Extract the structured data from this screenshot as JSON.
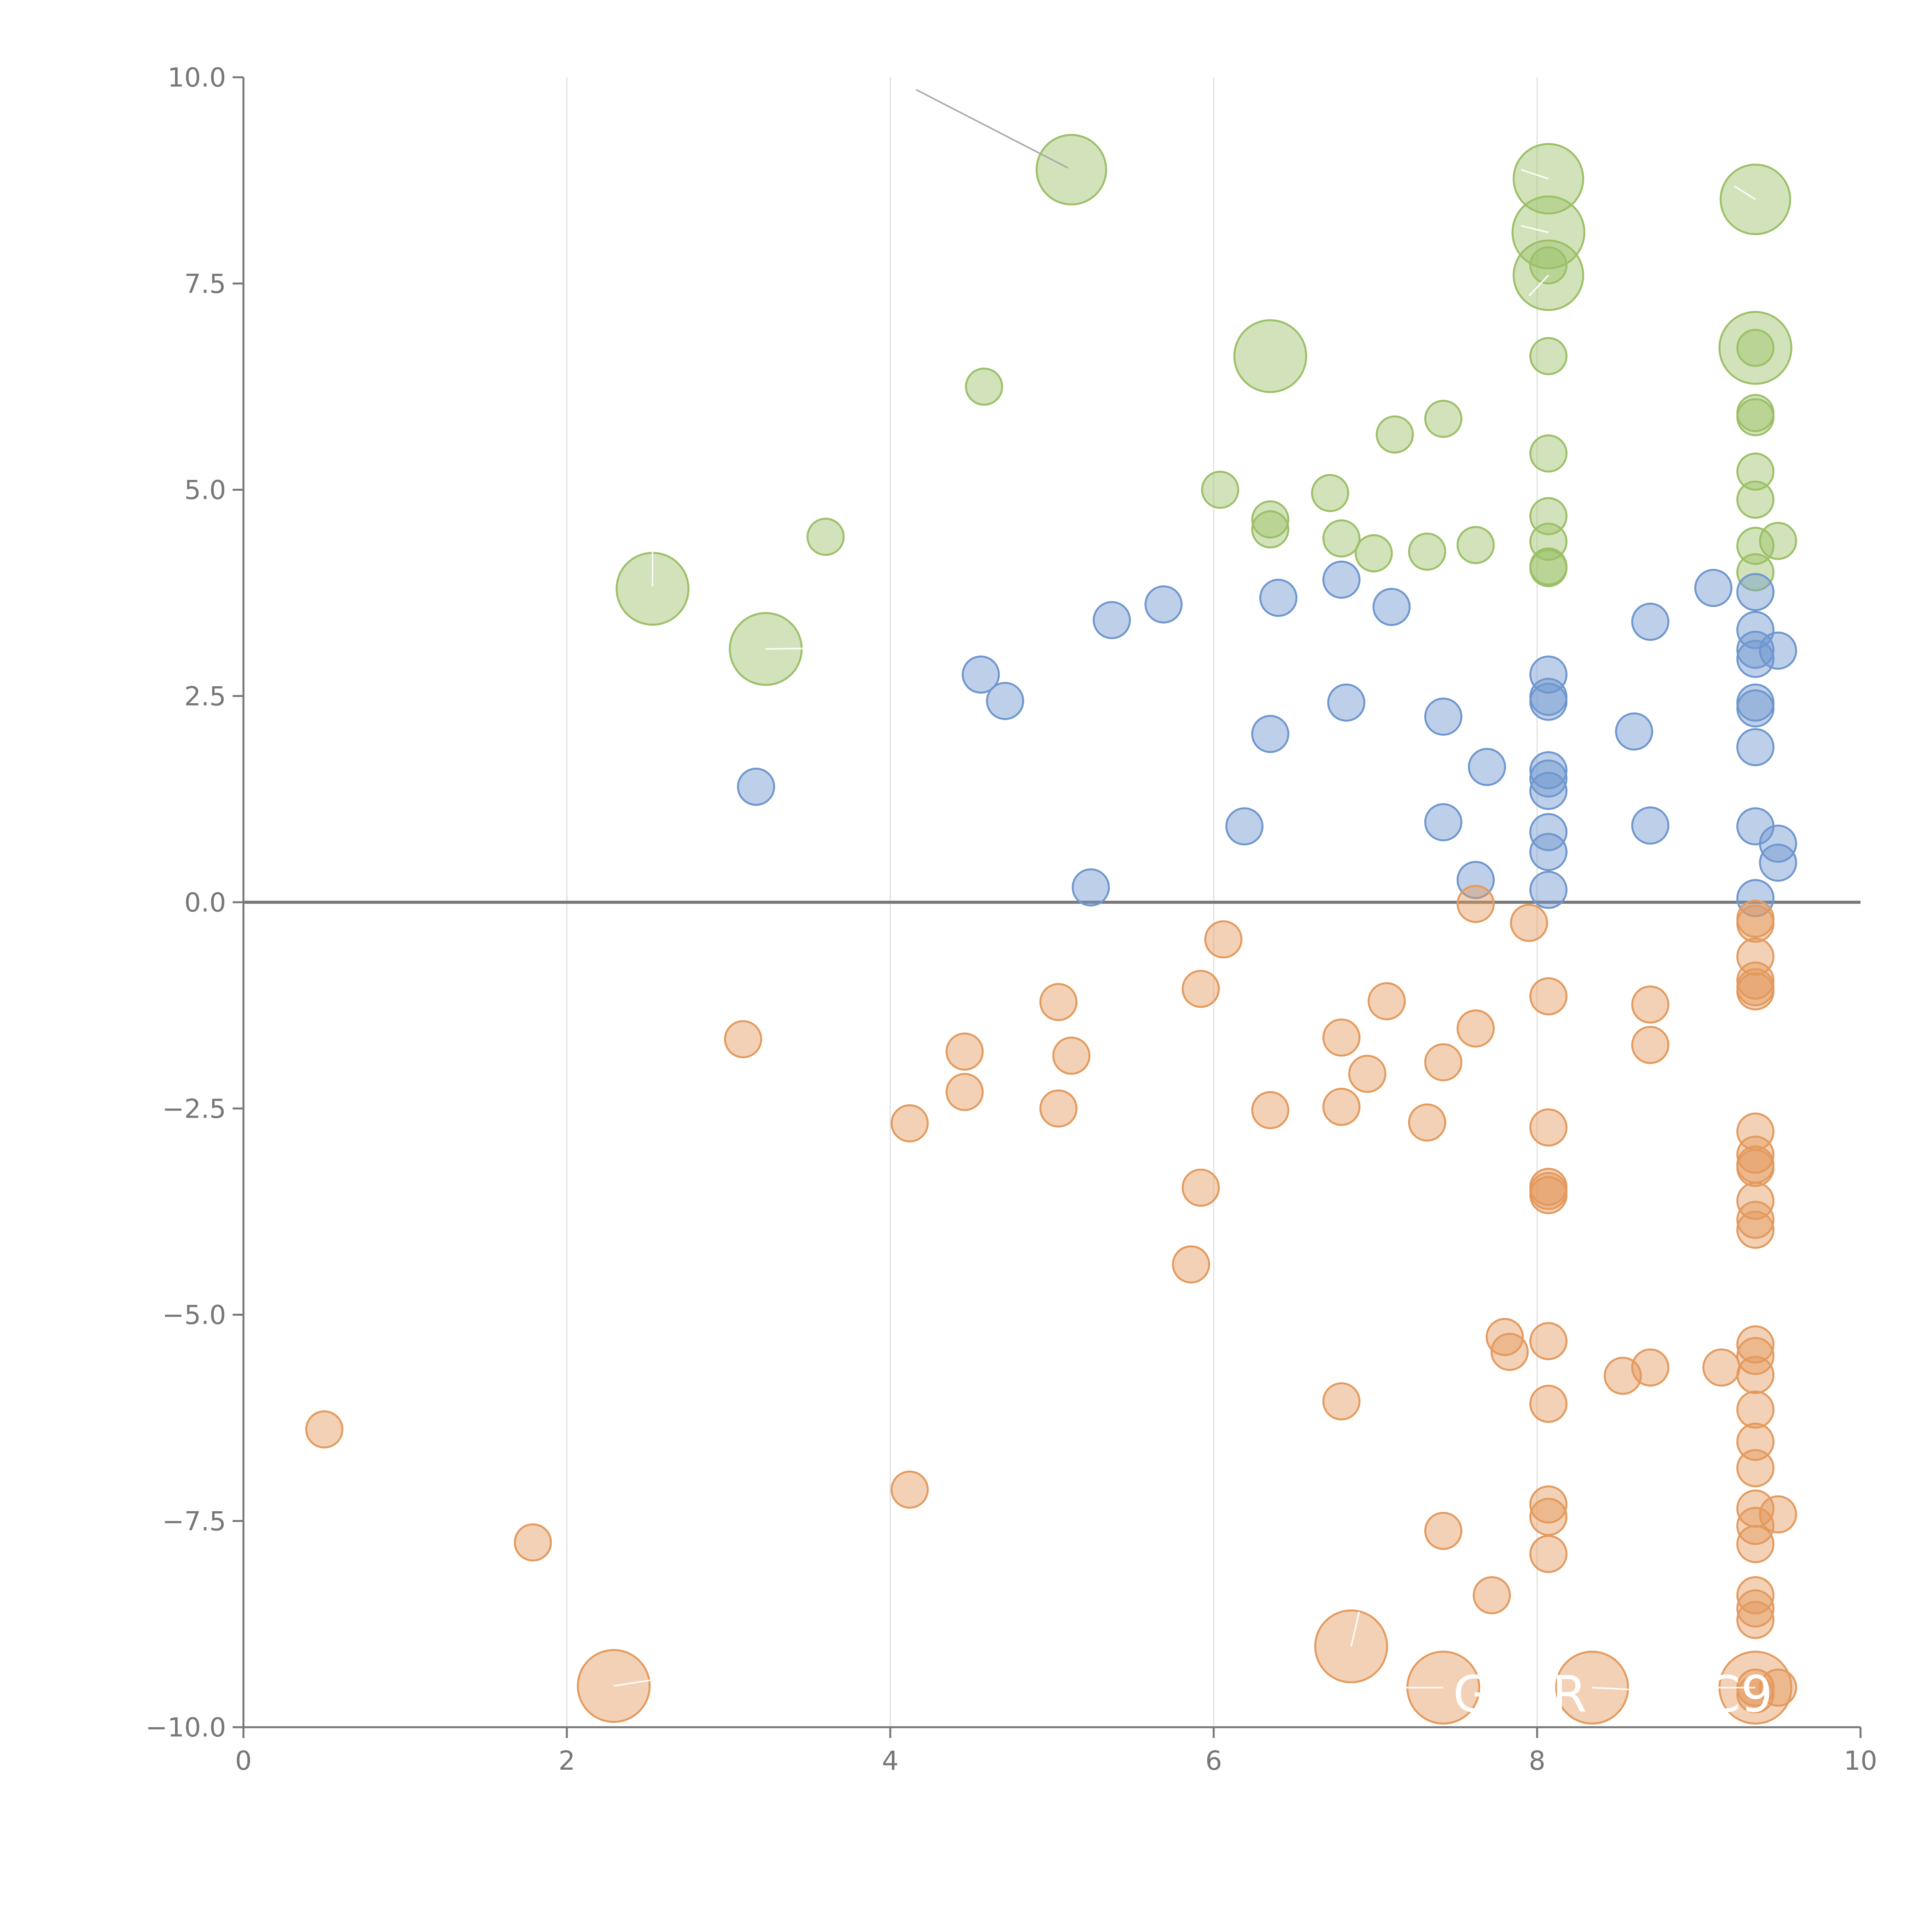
{
  "chart_data": {
    "type": "scatter",
    "title": "",
    "xlabel": "",
    "ylabel": "",
    "xlim": [
      0,
      10
    ],
    "ylim": [
      -10,
      10
    ],
    "x_ticks": [
      "0",
      "2",
      "4",
      "6",
      "8",
      "10"
    ],
    "y_ticks": [
      "10.0",
      "7.5",
      "5.0",
      "2.5",
      "0.0",
      "−2.5",
      "−5.0",
      "−7.5",
      "−10.0"
    ],
    "grid": "vertical",
    "reference_line_y": 0,
    "colors": {
      "green": "#9cc068",
      "blue": "#6f97cf",
      "orange": "#e49a5d",
      "axis": "#777777",
      "grid": "#e0e0e0"
    },
    "series": [
      {
        "name": "green",
        "color": "#9cc068",
        "points": [
          {
            "x": 5.12,
            "y": 8.88,
            "r": 1.5
          },
          {
            "x": 8.07,
            "y": 8.77,
            "r": 1.5
          },
          {
            "x": 8.07,
            "y": 8.12,
            "r": 1.55
          },
          {
            "x": 8.07,
            "y": 7.6,
            "r": 1.5
          },
          {
            "x": 9.35,
            "y": 8.52,
            "r": 1.5
          },
          {
            "x": 6.35,
            "y": 6.62,
            "r": 1.55
          },
          {
            "x": 9.35,
            "y": 6.72,
            "r": 1.55
          },
          {
            "x": 2.53,
            "y": 3.8,
            "r": 1.55
          },
          {
            "x": 3.23,
            "y": 3.07,
            "r": 1.55
          },
          {
            "x": 8.07,
            "y": 6.62,
            "r": 0.78
          },
          {
            "x": 9.35,
            "y": 6.72,
            "r": 0.78
          },
          {
            "x": 8.07,
            "y": 7.72,
            "r": 0.78
          },
          {
            "x": 4.58,
            "y": 6.25,
            "r": 0.78
          },
          {
            "x": 7.12,
            "y": 5.67,
            "r": 0.78
          },
          {
            "x": 7.42,
            "y": 5.86,
            "r": 0.78
          },
          {
            "x": 9.35,
            "y": 5.93,
            "r": 0.78
          },
          {
            "x": 9.35,
            "y": 5.88,
            "r": 0.78
          },
          {
            "x": 8.07,
            "y": 5.44,
            "r": 0.78
          },
          {
            "x": 9.35,
            "y": 5.22,
            "r": 0.78
          },
          {
            "x": 6.04,
            "y": 5.0,
            "r": 0.78
          },
          {
            "x": 6.72,
            "y": 4.96,
            "r": 0.78
          },
          {
            "x": 9.35,
            "y": 4.88,
            "r": 0.78
          },
          {
            "x": 8.07,
            "y": 4.68,
            "r": 0.78
          },
          {
            "x": 6.35,
            "y": 4.64,
            "r": 0.78
          },
          {
            "x": 6.35,
            "y": 4.52,
            "r": 0.78
          },
          {
            "x": 3.6,
            "y": 4.43,
            "r": 0.78
          },
          {
            "x": 6.79,
            "y": 4.41,
            "r": 0.78
          },
          {
            "x": 8.07,
            "y": 4.37,
            "r": 0.78
          },
          {
            "x": 9.49,
            "y": 4.38,
            "r": 0.78
          },
          {
            "x": 9.35,
            "y": 4.32,
            "r": 0.78
          },
          {
            "x": 7.62,
            "y": 4.33,
            "r": 0.78
          },
          {
            "x": 6.99,
            "y": 4.23,
            "r": 0.78
          },
          {
            "x": 7.32,
            "y": 4.25,
            "r": 0.78
          },
          {
            "x": 8.07,
            "y": 4.07,
            "r": 0.78
          },
          {
            "x": 8.07,
            "y": 4.05,
            "r": 0.78
          },
          {
            "x": 9.35,
            "y": 4.0,
            "r": 0.78
          }
        ]
      },
      {
        "name": "blue",
        "color": "#6f97cf",
        "points": [
          {
            "x": 9.35,
            "y": 3.76,
            "r": 0.78
          },
          {
            "x": 6.79,
            "y": 3.91,
            "r": 0.78
          },
          {
            "x": 9.09,
            "y": 3.81,
            "r": 0.78
          },
          {
            "x": 6.4,
            "y": 3.69,
            "r": 0.78
          },
          {
            "x": 5.69,
            "y": 3.61,
            "r": 0.78
          },
          {
            "x": 7.1,
            "y": 3.58,
            "r": 0.78
          },
          {
            "x": 5.37,
            "y": 3.42,
            "r": 0.78
          },
          {
            "x": 8.7,
            "y": 3.4,
            "r": 0.78
          },
          {
            "x": 9.35,
            "y": 3.3,
            "r": 0.78
          },
          {
            "x": 9.35,
            "y": 3.06,
            "r": 0.78
          },
          {
            "x": 9.49,
            "y": 3.05,
            "r": 0.78
          },
          {
            "x": 9.35,
            "y": 2.95,
            "r": 0.78
          },
          {
            "x": 8.07,
            "y": 2.76,
            "r": 0.78
          },
          {
            "x": 4.56,
            "y": 2.76,
            "r": 0.78
          },
          {
            "x": 8.07,
            "y": 2.49,
            "r": 0.78
          },
          {
            "x": 8.07,
            "y": 2.43,
            "r": 0.78
          },
          {
            "x": 4.71,
            "y": 2.44,
            "r": 0.78
          },
          {
            "x": 6.82,
            "y": 2.42,
            "r": 0.78
          },
          {
            "x": 9.35,
            "y": 2.42,
            "r": 0.78
          },
          {
            "x": 9.35,
            "y": 2.35,
            "r": 0.78
          },
          {
            "x": 7.42,
            "y": 2.25,
            "r": 0.78
          },
          {
            "x": 8.6,
            "y": 2.07,
            "r": 0.78
          },
          {
            "x": 6.35,
            "y": 2.04,
            "r": 0.78
          },
          {
            "x": 9.35,
            "y": 1.88,
            "r": 0.78
          },
          {
            "x": 7.69,
            "y": 1.64,
            "r": 0.78
          },
          {
            "x": 8.07,
            "y": 1.6,
            "r": 0.78
          },
          {
            "x": 8.07,
            "y": 1.5,
            "r": 0.78
          },
          {
            "x": 3.17,
            "y": 1.4,
            "r": 0.78
          },
          {
            "x": 8.07,
            "y": 1.35,
            "r": 0.78
          },
          {
            "x": 7.42,
            "y": 0.97,
            "r": 0.78
          },
          {
            "x": 6.19,
            "y": 0.92,
            "r": 0.78
          },
          {
            "x": 8.7,
            "y": 0.93,
            "r": 0.78
          },
          {
            "x": 9.35,
            "y": 0.92,
            "r": 0.78
          },
          {
            "x": 8.07,
            "y": 0.85,
            "r": 0.78
          },
          {
            "x": 9.49,
            "y": 0.71,
            "r": 0.78
          },
          {
            "x": 8.07,
            "y": 0.61,
            "r": 0.78
          },
          {
            "x": 9.49,
            "y": 0.48,
            "r": 0.78
          },
          {
            "x": 7.62,
            "y": 0.27,
            "r": 0.78
          },
          {
            "x": 5.24,
            "y": 0.18,
            "r": 0.78
          },
          {
            "x": 8.07,
            "y": 0.15,
            "r": 0.78
          },
          {
            "x": 9.35,
            "y": 0.05,
            "r": 0.78
          }
        ]
      },
      {
        "name": "orange",
        "color": "#e49a5d",
        "points": [
          {
            "x": 7.62,
            "y": -0.02,
            "r": 0.78
          },
          {
            "x": 7.95,
            "y": -0.25,
            "r": 0.78
          },
          {
            "x": 9.35,
            "y": -0.2,
            "r": 0.78
          },
          {
            "x": 9.35,
            "y": -0.26,
            "r": 0.78
          },
          {
            "x": 6.06,
            "y": -0.45,
            "r": 0.78
          },
          {
            "x": 9.35,
            "y": -0.66,
            "r": 0.78
          },
          {
            "x": 9.35,
            "y": -0.95,
            "r": 0.78
          },
          {
            "x": 9.35,
            "y": -1.03,
            "r": 0.78
          },
          {
            "x": 9.35,
            "y": -1.08,
            "r": 0.78
          },
          {
            "x": 5.92,
            "y": -1.05,
            "r": 0.78
          },
          {
            "x": 8.07,
            "y": -1.14,
            "r": 0.78
          },
          {
            "x": 7.07,
            "y": -1.2,
            "r": 0.78
          },
          {
            "x": 5.04,
            "y": -1.21,
            "r": 0.78
          },
          {
            "x": 8.7,
            "y": -1.24,
            "r": 0.78
          },
          {
            "x": 7.62,
            "y": -1.53,
            "r": 0.78
          },
          {
            "x": 6.79,
            "y": -1.64,
            "r": 0.78
          },
          {
            "x": 3.09,
            "y": -1.66,
            "r": 0.78
          },
          {
            "x": 8.7,
            "y": -1.73,
            "r": 0.78
          },
          {
            "x": 4.46,
            "y": -1.81,
            "r": 0.78
          },
          {
            "x": 5.12,
            "y": -1.86,
            "r": 0.78
          },
          {
            "x": 7.42,
            "y": -1.94,
            "r": 0.78
          },
          {
            "x": 6.95,
            "y": -2.08,
            "r": 0.78
          },
          {
            "x": 4.46,
            "y": -2.3,
            "r": 0.78
          },
          {
            "x": 6.79,
            "y": -2.48,
            "r": 0.78
          },
          {
            "x": 5.04,
            "y": -2.5,
            "r": 0.78
          },
          {
            "x": 6.35,
            "y": -2.52,
            "r": 0.78
          },
          {
            "x": 4.12,
            "y": -2.68,
            "r": 0.78
          },
          {
            "x": 7.32,
            "y": -2.67,
            "r": 0.78
          },
          {
            "x": 8.07,
            "y": -2.73,
            "r": 0.78
          },
          {
            "x": 9.35,
            "y": -2.78,
            "r": 0.78
          },
          {
            "x": 9.35,
            "y": -3.06,
            "r": 0.78
          },
          {
            "x": 9.35,
            "y": -3.18,
            "r": 0.78
          },
          {
            "x": 9.35,
            "y": -3.22,
            "r": 0.78
          },
          {
            "x": 8.07,
            "y": -3.45,
            "r": 0.78
          },
          {
            "x": 8.07,
            "y": -3.5,
            "r": 0.78
          },
          {
            "x": 8.07,
            "y": -3.55,
            "r": 0.78
          },
          {
            "x": 5.92,
            "y": -3.46,
            "r": 0.78
          },
          {
            "x": 9.35,
            "y": -3.62,
            "r": 0.78
          },
          {
            "x": 9.35,
            "y": -3.85,
            "r": 0.78
          },
          {
            "x": 9.35,
            "y": -3.97,
            "r": 0.78
          },
          {
            "x": 5.86,
            "y": -4.39,
            "r": 0.78
          },
          {
            "x": 7.8,
            "y": -5.27,
            "r": 0.78
          },
          {
            "x": 8.07,
            "y": -5.32,
            "r": 0.78
          },
          {
            "x": 9.35,
            "y": -5.36,
            "r": 0.78
          },
          {
            "x": 7.83,
            "y": -5.45,
            "r": 0.78
          },
          {
            "x": 9.35,
            "y": -5.5,
            "r": 0.78
          },
          {
            "x": 9.14,
            "y": -5.64,
            "r": 0.78
          },
          {
            "x": 8.7,
            "y": -5.64,
            "r": 0.78
          },
          {
            "x": 9.35,
            "y": -5.73,
            "r": 0.78
          },
          {
            "x": 8.53,
            "y": -5.74,
            "r": 0.78
          },
          {
            "x": 6.79,
            "y": -6.05,
            "r": 0.78
          },
          {
            "x": 8.07,
            "y": -6.08,
            "r": 0.78
          },
          {
            "x": 9.35,
            "y": -6.15,
            "r": 0.78
          },
          {
            "x": 0.5,
            "y": -6.39,
            "r": 0.78
          },
          {
            "x": 9.35,
            "y": -6.54,
            "r": 0.78
          },
          {
            "x": 9.35,
            "y": -6.86,
            "r": 0.78
          },
          {
            "x": 4.12,
            "y": -7.12,
            "r": 0.78
          },
          {
            "x": 8.07,
            "y": -7.3,
            "r": 0.78
          },
          {
            "x": 9.35,
            "y": -7.35,
            "r": 0.78
          },
          {
            "x": 8.07,
            "y": -7.45,
            "r": 0.78
          },
          {
            "x": 9.49,
            "y": -7.42,
            "r": 0.78
          },
          {
            "x": 9.35,
            "y": -7.56,
            "r": 0.78
          },
          {
            "x": 7.42,
            "y": -7.62,
            "r": 0.78
          },
          {
            "x": 1.79,
            "y": -7.76,
            "r": 0.78
          },
          {
            "x": 9.35,
            "y": -7.78,
            "r": 0.78
          },
          {
            "x": 8.07,
            "y": -7.9,
            "r": 0.78
          },
          {
            "x": 7.72,
            "y": -8.4,
            "r": 0.78
          },
          {
            "x": 9.35,
            "y": -8.4,
            "r": 0.78
          },
          {
            "x": 9.35,
            "y": -8.56,
            "r": 0.78
          },
          {
            "x": 9.35,
            "y": -8.7,
            "r": 0.78
          },
          {
            "x": 9.35,
            "y": -9.52,
            "r": 0.78
          },
          {
            "x": 9.35,
            "y": -9.6,
            "r": 0.78
          },
          {
            "x": 9.49,
            "y": -9.52,
            "r": 0.78
          },
          {
            "x": 6.85,
            "y": -9.02,
            "r": 1.55
          },
          {
            "x": 2.29,
            "y": -9.5,
            "r": 1.55
          },
          {
            "x": 7.42,
            "y": -9.52,
            "r": 1.55
          },
          {
            "x": 8.34,
            "y": -9.52,
            "r": 1.55
          },
          {
            "x": 9.35,
            "y": -9.52,
            "r": 1.55
          }
        ]
      }
    ],
    "annotations": [
      {
        "text": "G",
        "x": 7.6,
        "y": -9.6
      },
      {
        "text": "R",
        "x": 8.2,
        "y": -9.6
      },
      {
        "text": "C9",
        "x": 9.25,
        "y": -9.6
      }
    ],
    "leader_lines": [
      {
        "from": [
          4.16,
          9.85
        ],
        "to": [
          5.1,
          8.9
        ],
        "color": "#aaaaaa"
      },
      {
        "from": [
          2.53,
          3.83
        ],
        "to": [
          2.53,
          4.35
        ],
        "color": "#ffffff"
      },
      {
        "from": [
          3.23,
          3.07
        ],
        "to": [
          3.6,
          3.08
        ],
        "color": "#ffffff"
      },
      {
        "from": [
          8.07,
          8.77
        ],
        "to": [
          7.9,
          8.88
        ],
        "color": "#ffffff"
      },
      {
        "from": [
          8.07,
          8.12
        ],
        "to": [
          7.9,
          8.2
        ],
        "color": "#ffffff"
      },
      {
        "from": [
          8.07,
          7.6
        ],
        "to": [
          7.95,
          7.35
        ],
        "color": "#ffffff"
      },
      {
        "from": [
          9.35,
          8.52
        ],
        "to": [
          9.22,
          8.68
        ],
        "color": "#ffffff"
      },
      {
        "from": [
          6.85,
          -9.02
        ],
        "to": [
          6.9,
          -8.6
        ],
        "color": "#ffffff"
      },
      {
        "from": [
          2.29,
          -9.5
        ],
        "to": [
          2.55,
          -9.42
        ],
        "color": "#ffffff"
      },
      {
        "from": [
          7.42,
          -9.52
        ],
        "to": [
          7.1,
          -9.52
        ],
        "color": "#ffffff"
      },
      {
        "from": [
          8.34,
          -9.52
        ],
        "to": [
          8.65,
          -9.55
        ],
        "color": "#ffffff"
      },
      {
        "from": [
          9.35,
          -9.52
        ],
        "to": [
          9.05,
          -9.52
        ],
        "color": "#ffffff"
      }
    ]
  }
}
